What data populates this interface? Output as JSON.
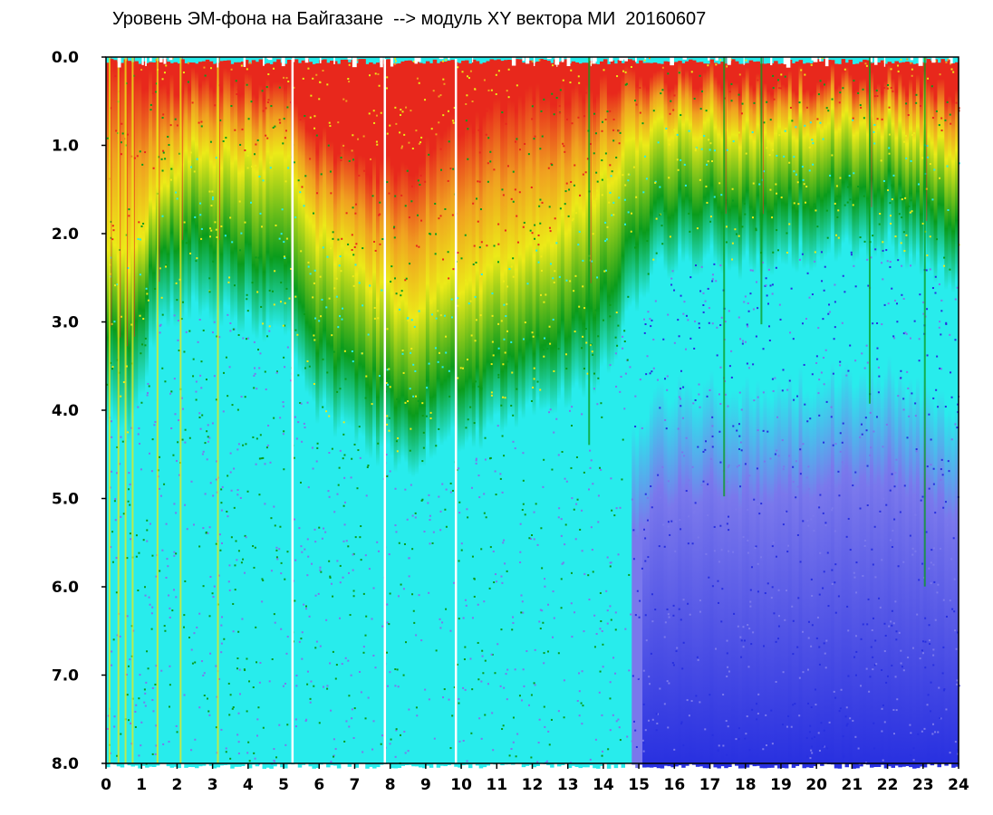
{
  "chart_data": {
    "type": "heatmap",
    "title": "Уровень ЭМ-фона на Байгазане  --> модуль XY вектора МИ  20160607",
    "xlabel": "",
    "ylabel": "",
    "xlim": [
      0,
      24
    ],
    "ylim": [
      0.0,
      8.0
    ],
    "y_inverted": true,
    "x_ticks": [
      "0",
      "1",
      "2",
      "3",
      "4",
      "5",
      "6",
      "7",
      "8",
      "9",
      "10",
      "11",
      "12",
      "13",
      "14",
      "15",
      "16",
      "17",
      "18",
      "19",
      "20",
      "21",
      "22",
      "23",
      "24"
    ],
    "y_ticks": [
      "0.0",
      "1.0",
      "2.0",
      "3.0",
      "4.0",
      "5.0",
      "6.0",
      "7.0",
      "8.0"
    ],
    "grid": false,
    "legend": "none",
    "colors": {
      "palette": [
        "#e8281c",
        "#f0a020",
        "#ecea18",
        "#0a9c1c",
        "#28ecec",
        "#7a78ec",
        "#2830e0"
      ],
      "gap_line": "#ffffff",
      "axis": "#000000",
      "background": "#ffffff"
    },
    "hour_gradient_stops": [
      {
        "hour": 0.0,
        "red_top": 0.1,
        "yellow": 2.0,
        "green": 3.0,
        "cyan": 4.0,
        "blue_level": 0.3
      },
      {
        "hour": 0.6,
        "red_top": 0.1,
        "yellow": 2.3,
        "green": 3.2,
        "cyan": 4.3,
        "blue_level": 0.3
      },
      {
        "hour": 1.5,
        "red_top": 0.3,
        "yellow": 1.5,
        "green": 2.2,
        "cyan": 3.0,
        "blue_level": 0.3
      },
      {
        "hour": 2.2,
        "red_top": 0.2,
        "yellow": 1.0,
        "green": 1.9,
        "cyan": 2.8,
        "blue_level": 0.3
      },
      {
        "hour": 3.5,
        "red_top": 0.2,
        "yellow": 1.1,
        "green": 2.1,
        "cyan": 2.9,
        "blue_level": 0.35
      },
      {
        "hour": 5.0,
        "red_top": 0.3,
        "yellow": 1.1,
        "green": 2.3,
        "cyan": 3.1,
        "blue_level": 0.3
      },
      {
        "hour": 6.0,
        "red_top": 0.9,
        "yellow": 2.0,
        "green": 3.2,
        "cyan": 4.0,
        "blue_level": 0.25
      },
      {
        "hour": 7.5,
        "red_top": 1.2,
        "yellow": 2.5,
        "green": 3.6,
        "cyan": 4.4,
        "blue_level": 0.2
      },
      {
        "hour": 8.5,
        "red_top": 1.2,
        "yellow": 2.8,
        "green": 3.9,
        "cyan": 4.6,
        "blue_level": 0.2
      },
      {
        "hour": 10.0,
        "red_top": 0.7,
        "yellow": 2.5,
        "green": 3.6,
        "cyan": 4.3,
        "blue_level": 0.2
      },
      {
        "hour": 12.0,
        "red_top": 0.4,
        "yellow": 2.2,
        "green": 3.3,
        "cyan": 4.0,
        "blue_level": 0.25
      },
      {
        "hour": 14.0,
        "red_top": 0.3,
        "yellow": 1.4,
        "green": 2.7,
        "cyan": 3.6,
        "blue_level": 0.3
      },
      {
        "hour": 15.5,
        "red_top": 0.15,
        "yellow": 0.7,
        "green": 1.6,
        "cyan": 2.3,
        "blue_level": 0.7
      },
      {
        "hour": 18.0,
        "red_top": 0.2,
        "yellow": 0.8,
        "green": 1.6,
        "cyan": 2.3,
        "blue_level": 0.85
      },
      {
        "hour": 20.0,
        "red_top": 0.2,
        "yellow": 0.7,
        "green": 1.5,
        "cyan": 2.2,
        "blue_level": 0.95
      },
      {
        "hour": 22.0,
        "red_top": 0.2,
        "yellow": 0.7,
        "green": 1.4,
        "cyan": 2.1,
        "blue_level": 0.9
      },
      {
        "hour": 24.0,
        "red_top": 0.3,
        "yellow": 1.0,
        "green": 1.8,
        "cyan": 2.5,
        "blue_level": 0.95
      }
    ],
    "data_gaps_hours": [
      5.25,
      7.85,
      9.85
    ],
    "bright_streak_hours": [
      0.1,
      0.35,
      0.55,
      0.75,
      1.45,
      2.1,
      3.15,
      13.6,
      17.4,
      18.45,
      21.5,
      23.05
    ]
  }
}
